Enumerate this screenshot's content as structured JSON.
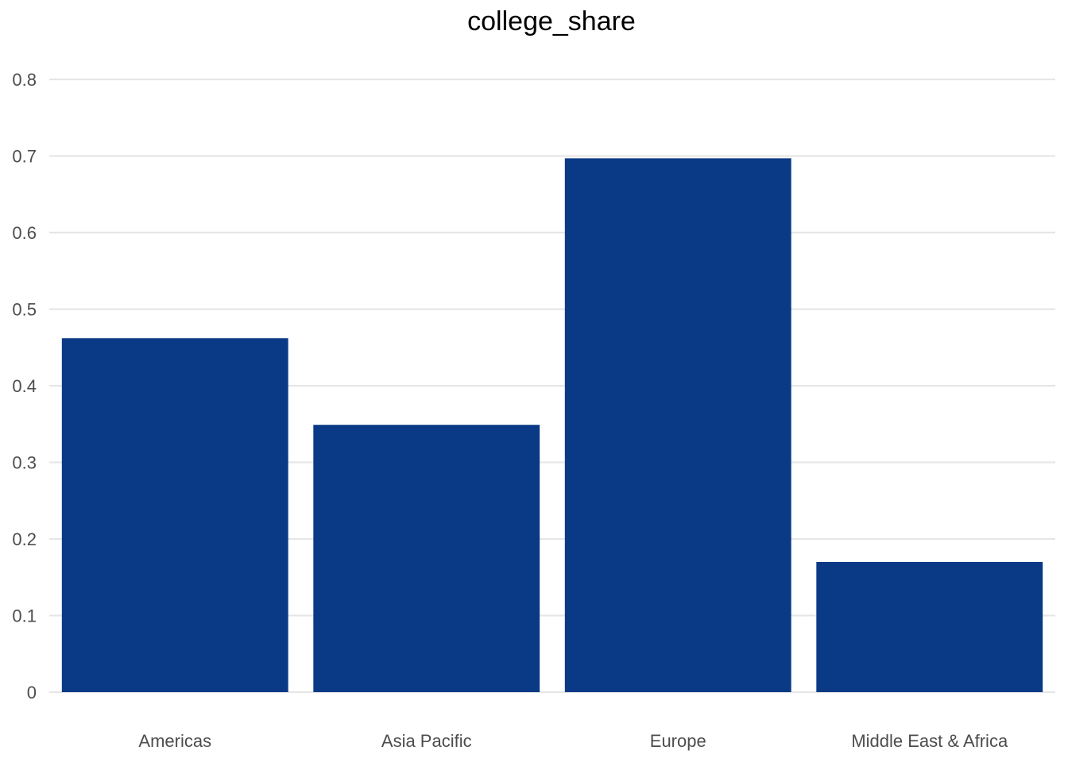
{
  "chart_data": {
    "type": "bar",
    "title": "college_share",
    "xlabel": "",
    "ylabel": "",
    "categories": [
      "Americas",
      "Asia Pacific",
      "Europe",
      "Middle East & Africa"
    ],
    "values": [
      0.462,
      0.349,
      0.697,
      0.17
    ],
    "ylim": [
      0,
      0.8
    ],
    "yticks": [
      "0",
      "0.1",
      "0.2",
      "0.3",
      "0.4",
      "0.5",
      "0.6",
      "0.7",
      "0.8"
    ],
    "grid": true,
    "bar_color": "#0a3a85",
    "grid_color": "#e6e6e6"
  }
}
